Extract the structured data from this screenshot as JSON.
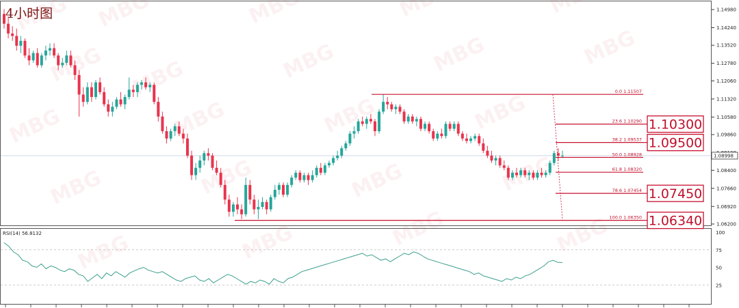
{
  "title": "4小时图",
  "watermark": "MBG",
  "colors": {
    "bull": "#26a69a",
    "bear": "#e8344e",
    "fib": "#c8102e",
    "rsi_line": "#3a9e8c",
    "grid": "#dddddd"
  },
  "chart_data": {
    "type": "candlestick",
    "price_axis": {
      "ticks": [
        1.1498,
        1.1424,
        1.1352,
        1.1278,
        1.1206,
        1.1132,
        1.1058,
        1.0986,
        1.0912,
        1.084,
        1.0766,
        1.0692,
        1.062
      ],
      "current_price": 1.08998,
      "ylim": [
        1.062,
        1.1498
      ]
    },
    "candles": [
      [
        1.148,
        1.15,
        1.142,
        1.144
      ],
      [
        1.144,
        1.147,
        1.138,
        1.14
      ],
      [
        1.14,
        1.143,
        1.137,
        1.139
      ],
      [
        1.139,
        1.142,
        1.133,
        1.135
      ],
      [
        1.135,
        1.139,
        1.132,
        1.137
      ],
      [
        1.137,
        1.138,
        1.13,
        1.131
      ],
      [
        1.131,
        1.134,
        1.127,
        1.129
      ],
      [
        1.129,
        1.133,
        1.128,
        1.132
      ],
      [
        1.132,
        1.134,
        1.126,
        1.127
      ],
      [
        1.127,
        1.132,
        1.126,
        1.131
      ],
      [
        1.131,
        1.135,
        1.129,
        1.133
      ],
      [
        1.133,
        1.136,
        1.131,
        1.134
      ],
      [
        1.134,
        1.136,
        1.13,
        1.131
      ],
      [
        1.131,
        1.132,
        1.125,
        1.127
      ],
      [
        1.127,
        1.13,
        1.126,
        1.128
      ],
      [
        1.128,
        1.133,
        1.127,
        1.131
      ],
      [
        1.131,
        1.133,
        1.126,
        1.127
      ],
      [
        1.127,
        1.129,
        1.121,
        1.123
      ],
      [
        1.123,
        1.125,
        1.106,
        1.115
      ],
      [
        1.115,
        1.118,
        1.11,
        1.112
      ],
      [
        1.112,
        1.12,
        1.111,
        1.118
      ],
      [
        1.118,
        1.12,
        1.112,
        1.114
      ],
      [
        1.114,
        1.121,
        1.113,
        1.12
      ],
      [
        1.12,
        1.122,
        1.115,
        1.116
      ],
      [
        1.116,
        1.118,
        1.11,
        1.111
      ],
      [
        1.111,
        1.113,
        1.106,
        1.108
      ],
      [
        1.108,
        1.112,
        1.106,
        1.11
      ],
      [
        1.11,
        1.114,
        1.109,
        1.113
      ],
      [
        1.113,
        1.116,
        1.11,
        1.111
      ],
      [
        1.111,
        1.115,
        1.109,
        1.114
      ],
      [
        1.114,
        1.122,
        1.113,
        1.117
      ],
      [
        1.117,
        1.119,
        1.114,
        1.116
      ],
      [
        1.116,
        1.12,
        1.114,
        1.119
      ],
      [
        1.119,
        1.121,
        1.117,
        1.12
      ],
      [
        1.12,
        1.122,
        1.117,
        1.118
      ],
      [
        1.118,
        1.12,
        1.116,
        1.119
      ],
      [
        1.119,
        1.12,
        1.111,
        1.112
      ],
      [
        1.112,
        1.114,
        1.104,
        1.106
      ],
      [
        1.106,
        1.108,
        1.099,
        1.1
      ],
      [
        1.1,
        1.102,
        1.095,
        1.097
      ],
      [
        1.097,
        1.101,
        1.096,
        1.1
      ],
      [
        1.1,
        1.103,
        1.098,
        1.102
      ],
      [
        1.102,
        1.104,
        1.098,
        1.099
      ],
      [
        1.099,
        1.101,
        1.095,
        1.097
      ],
      [
        1.097,
        1.099,
        1.089,
        1.09
      ],
      [
        1.09,
        1.092,
        1.08,
        1.082
      ],
      [
        1.082,
        1.087,
        1.08,
        1.085
      ],
      [
        1.085,
        1.09,
        1.083,
        1.088
      ],
      [
        1.088,
        1.092,
        1.086,
        1.091
      ],
      [
        1.091,
        1.093,
        1.088,
        1.09
      ],
      [
        1.09,
        1.091,
        1.084,
        1.085
      ],
      [
        1.085,
        1.088,
        1.082,
        1.083
      ],
      [
        1.083,
        1.085,
        1.077,
        1.078
      ],
      [
        1.078,
        1.08,
        1.07,
        1.072
      ],
      [
        1.072,
        1.074,
        1.065,
        1.067
      ],
      [
        1.067,
        1.071,
        1.065,
        1.07
      ],
      [
        1.07,
        1.073,
        1.066,
        1.068
      ],
      [
        1.068,
        1.07,
        1.064,
        1.066
      ],
      [
        1.066,
        1.081,
        1.065,
        1.078
      ],
      [
        1.078,
        1.08,
        1.07,
        1.072
      ],
      [
        1.072,
        1.074,
        1.066,
        1.068
      ],
      [
        1.068,
        1.072,
        1.064,
        1.069
      ],
      [
        1.069,
        1.073,
        1.068,
        1.071
      ],
      [
        1.071,
        1.072,
        1.066,
        1.068
      ],
      [
        1.068,
        1.074,
        1.067,
        1.073
      ],
      [
        1.073,
        1.078,
        1.072,
        1.076
      ],
      [
        1.076,
        1.079,
        1.074,
        1.078
      ],
      [
        1.078,
        1.079,
        1.073,
        1.074
      ],
      [
        1.074,
        1.079,
        1.073,
        1.078
      ],
      [
        1.078,
        1.082,
        1.077,
        1.081
      ],
      [
        1.081,
        1.084,
        1.08,
        1.083
      ],
      [
        1.083,
        1.084,
        1.079,
        1.08
      ],
      [
        1.08,
        1.083,
        1.079,
        1.082
      ],
      [
        1.082,
        1.083,
        1.078,
        1.08
      ],
      [
        1.08,
        1.084,
        1.079,
        1.082
      ],
      [
        1.082,
        1.086,
        1.081,
        1.085
      ],
      [
        1.085,
        1.087,
        1.082,
        1.083
      ],
      [
        1.083,
        1.087,
        1.082,
        1.086
      ],
      [
        1.086,
        1.088,
        1.085,
        1.087
      ],
      [
        1.087,
        1.09,
        1.086,
        1.089
      ],
      [
        1.089,
        1.092,
        1.088,
        1.09
      ],
      [
        1.09,
        1.094,
        1.089,
        1.093
      ],
      [
        1.093,
        1.096,
        1.092,
        1.095
      ],
      [
        1.095,
        1.1,
        1.094,
        1.099
      ],
      [
        1.099,
        1.102,
        1.097,
        1.1
      ],
      [
        1.1,
        1.105,
        1.099,
        1.104
      ],
      [
        1.104,
        1.106,
        1.102,
        1.103
      ],
      [
        1.103,
        1.106,
        1.101,
        1.105
      ],
      [
        1.105,
        1.107,
        1.103,
        1.104
      ],
      [
        1.104,
        1.105,
        1.098,
        1.1
      ],
      [
        1.1,
        1.109,
        1.099,
        1.108
      ],
      [
        1.108,
        1.115,
        1.107,
        1.112
      ],
      [
        1.112,
        1.114,
        1.109,
        1.111
      ],
      [
        1.111,
        1.112,
        1.108,
        1.109
      ],
      [
        1.109,
        1.111,
        1.107,
        1.11
      ],
      [
        1.11,
        1.111,
        1.107,
        1.108
      ],
      [
        1.108,
        1.109,
        1.103,
        1.104
      ],
      [
        1.104,
        1.107,
        1.103,
        1.106
      ],
      [
        1.106,
        1.107,
        1.103,
        1.104
      ],
      [
        1.104,
        1.106,
        1.102,
        1.105
      ],
      [
        1.105,
        1.106,
        1.1,
        1.101
      ],
      [
        1.101,
        1.104,
        1.1,
        1.103
      ],
      [
        1.103,
        1.104,
        1.099,
        1.1
      ],
      [
        1.1,
        1.101,
        1.096,
        1.097
      ],
      [
        1.097,
        1.1,
        1.096,
        1.099
      ],
      [
        1.099,
        1.101,
        1.097,
        1.098
      ],
      [
        1.098,
        1.104,
        1.097,
        1.103
      ],
      [
        1.103,
        1.104,
        1.1,
        1.101
      ],
      [
        1.101,
        1.104,
        1.1,
        1.103
      ],
      [
        1.103,
        1.104,
        1.098,
        1.099
      ],
      [
        1.099,
        1.1,
        1.096,
        1.097
      ],
      [
        1.097,
        1.099,
        1.095,
        1.096
      ],
      [
        1.096,
        1.098,
        1.095,
        1.097
      ],
      [
        1.097,
        1.099,
        1.096,
        1.098
      ],
      [
        1.098,
        1.099,
        1.094,
        1.095
      ],
      [
        1.095,
        1.097,
        1.091,
        1.092
      ],
      [
        1.092,
        1.094,
        1.089,
        1.09
      ],
      [
        1.09,
        1.092,
        1.087,
        1.088
      ],
      [
        1.088,
        1.09,
        1.086,
        1.089
      ],
      [
        1.089,
        1.09,
        1.085,
        1.086
      ],
      [
        1.086,
        1.088,
        1.084,
        1.085
      ],
      [
        1.085,
        1.086,
        1.08,
        1.081
      ],
      [
        1.081,
        1.084,
        1.08,
        1.083
      ],
      [
        1.083,
        1.085,
        1.081,
        1.082
      ],
      [
        1.082,
        1.085,
        1.081,
        1.084
      ],
      [
        1.084,
        1.085,
        1.081,
        1.082
      ],
      [
        1.082,
        1.084,
        1.08,
        1.083
      ],
      [
        1.083,
        1.084,
        1.08,
        1.081
      ],
      [
        1.081,
        1.084,
        1.08,
        1.083
      ],
      [
        1.083,
        1.085,
        1.081,
        1.082
      ],
      [
        1.082,
        1.084,
        1.081,
        1.083
      ],
      [
        1.083,
        1.088,
        1.082,
        1.087
      ],
      [
        1.087,
        1.092,
        1.086,
        1.091
      ],
      [
        1.091,
        1.093,
        1.088,
        1.09
      ],
      [
        1.09,
        1.092,
        1.089,
        1.09
      ]
    ],
    "fibonacci": {
      "levels": [
        {
          "label": "0.0 1.11507",
          "price": 1.11507
        },
        {
          "label": "23.6 1.10290",
          "price": 1.1029
        },
        {
          "label": "38.2 1.09537",
          "price": 1.09537
        },
        {
          "label": "50.0 1.08928",
          "price": 1.08928
        },
        {
          "label": "61.8 1.08320",
          "price": 1.0832
        },
        {
          "label": "78.6 1.07454",
          "price": 1.07454
        },
        {
          "label": "100.0 1.06350",
          "price": 1.0635
        }
      ],
      "callouts": [
        {
          "text": "1.10300",
          "price": 1.1029
        },
        {
          "text": "1.09500",
          "price": 1.09537
        },
        {
          "text": "1.07450",
          "price": 1.07454
        },
        {
          "text": "1.06340",
          "price": 1.0635
        }
      ]
    },
    "rsi": {
      "label": "RSI(14) 56.8132",
      "ticks": [
        100,
        75,
        50,
        25
      ],
      "ylim": [
        0,
        100
      ],
      "values": [
        85,
        80,
        72,
        68,
        60,
        58,
        52,
        50,
        55,
        48,
        52,
        50,
        46,
        44,
        48,
        46,
        40,
        38,
        30,
        35,
        40,
        34,
        42,
        38,
        44,
        40,
        36,
        42,
        45,
        48,
        50,
        46,
        44,
        42,
        44,
        40,
        36,
        32,
        30,
        34,
        36,
        38,
        32,
        30,
        34,
        28,
        32,
        36,
        40,
        38,
        34,
        30,
        26,
        30,
        28,
        32,
        30,
        26,
        34,
        30,
        28,
        34,
        36,
        40,
        44,
        46,
        48,
        50,
        52,
        54,
        56,
        58,
        60,
        62,
        64,
        66,
        68,
        70,
        66,
        68,
        64,
        60,
        62,
        58,
        62,
        66,
        70,
        68,
        72,
        70,
        66,
        62,
        60,
        58,
        56,
        54,
        52,
        50,
        48,
        46,
        44,
        40,
        42,
        38,
        36,
        34,
        32,
        30,
        34,
        32,
        36,
        34,
        38,
        40,
        44,
        48,
        52,
        58,
        60,
        57,
        56.8
      ]
    }
  }
}
